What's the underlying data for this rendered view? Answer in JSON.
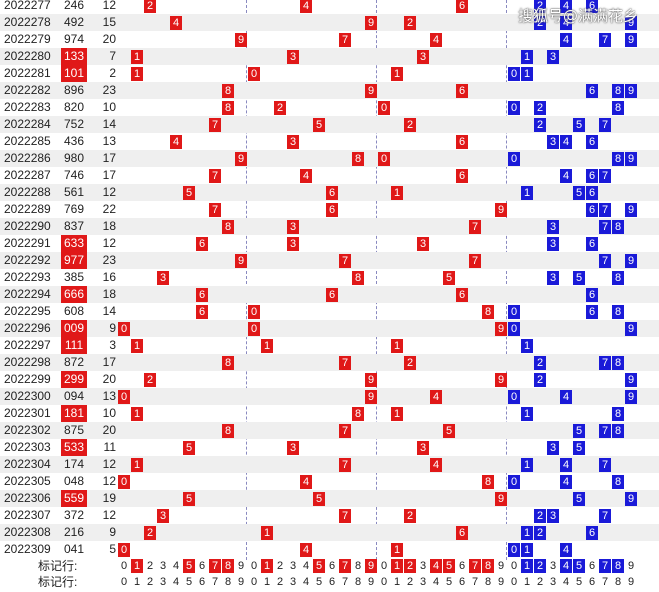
{
  "watermark": "搜狐号@满满花乡",
  "footer_label": "标记行:",
  "chart_data": {
    "type": "table",
    "columns": [
      "issue",
      "number",
      "span",
      "hundreds",
      "tens",
      "units",
      "digits"
    ],
    "rows": [
      {
        "issue": "2022277",
        "number": "246",
        "span": "12",
        "digits": [
          2,
          4,
          6
        ]
      },
      {
        "issue": "2022278",
        "number": "492",
        "span": "15",
        "digits": [
          2,
          4,
          9
        ]
      },
      {
        "issue": "2022279",
        "number": "974",
        "span": "20",
        "digits": [
          4,
          7,
          9
        ]
      },
      {
        "issue": "2022280",
        "number": "133",
        "span": "7",
        "digits": [
          1,
          3
        ]
      },
      {
        "issue": "2022281",
        "number": "101",
        "span": "2",
        "digits": [
          0,
          1
        ]
      },
      {
        "issue": "2022282",
        "number": "896",
        "span": "23",
        "digits": [
          6,
          8,
          9
        ]
      },
      {
        "issue": "2022283",
        "number": "820",
        "span": "10",
        "digits": [
          0,
          2,
          8
        ]
      },
      {
        "issue": "2022284",
        "number": "752",
        "span": "14",
        "digits": [
          2,
          5,
          7
        ]
      },
      {
        "issue": "2022285",
        "number": "436",
        "span": "13",
        "digits": [
          3,
          4,
          6
        ]
      },
      {
        "issue": "2022286",
        "number": "980",
        "span": "17",
        "digits": [
          0,
          8,
          9
        ]
      },
      {
        "issue": "2022287",
        "number": "746",
        "span": "17",
        "digits": [
          4,
          6,
          7
        ]
      },
      {
        "issue": "2022288",
        "number": "561",
        "span": "12",
        "digits": [
          1,
          5,
          6
        ]
      },
      {
        "issue": "2022289",
        "number": "769",
        "span": "22",
        "digits": [
          6,
          7,
          9
        ]
      },
      {
        "issue": "2022290",
        "number": "837",
        "span": "18",
        "digits": [
          3,
          7,
          8
        ]
      },
      {
        "issue": "2022291",
        "number": "633",
        "span": "12",
        "digits": [
          3,
          6
        ]
      },
      {
        "issue": "2022292",
        "number": "977",
        "span": "23",
        "digits": [
          7,
          9
        ]
      },
      {
        "issue": "2022293",
        "number": "385",
        "span": "16",
        "digits": [
          3,
          5,
          8
        ]
      },
      {
        "issue": "2022294",
        "number": "666",
        "span": "18",
        "digits": [
          6
        ]
      },
      {
        "issue": "2022295",
        "number": "608",
        "span": "14",
        "digits": [
          0,
          6,
          8
        ]
      },
      {
        "issue": "2022296",
        "number": "009",
        "span": "9",
        "digits": [
          0,
          9
        ]
      },
      {
        "issue": "2022297",
        "number": "111",
        "span": "3",
        "digits": [
          1
        ]
      },
      {
        "issue": "2022298",
        "number": "872",
        "span": "17",
        "digits": [
          2,
          7,
          8
        ]
      },
      {
        "issue": "2022299",
        "number": "299",
        "span": "20",
        "digits": [
          2,
          9
        ]
      },
      {
        "issue": "2022300",
        "number": "094",
        "span": "13",
        "digits": [
          0,
          4,
          9
        ]
      },
      {
        "issue": "2022301",
        "number": "181",
        "span": "10",
        "digits": [
          1,
          8
        ]
      },
      {
        "issue": "2022302",
        "number": "875",
        "span": "20",
        "digits": [
          5,
          7,
          8
        ]
      },
      {
        "issue": "2022303",
        "number": "533",
        "span": "11",
        "digits": [
          3,
          5
        ]
      },
      {
        "issue": "2022304",
        "number": "174",
        "span": "12",
        "digits": [
          1,
          4,
          7
        ]
      },
      {
        "issue": "2022305",
        "number": "048",
        "span": "12",
        "digits": [
          0,
          4,
          8
        ]
      },
      {
        "issue": "2022306",
        "number": "559",
        "span": "19",
        "digits": [
          5,
          9
        ]
      },
      {
        "issue": "2022307",
        "number": "372",
        "span": "12",
        "digits": [
          2,
          3,
          7
        ]
      },
      {
        "issue": "2022308",
        "number": "216",
        "span": "9",
        "digits": [
          1,
          2,
          6
        ]
      },
      {
        "issue": "2022309",
        "number": "041",
        "span": "5",
        "digits": [
          0,
          1,
          4
        ]
      }
    ],
    "highlighted_numbers": [
      "133",
      "101",
      "633",
      "977",
      "666",
      "009",
      "111",
      "299",
      "181",
      "533",
      "559"
    ],
    "footer_rows": [
      {
        "label": "标记行:",
        "hundreds_marked": [
          1,
          5,
          7,
          8
        ],
        "tens_marked": [
          1,
          5,
          7,
          9
        ],
        "units_marked": [
          1,
          2,
          4,
          5,
          7,
          8
        ]
      },
      {
        "label": "标记行:",
        "hundreds_marked": [],
        "tens_marked": [],
        "units_marked": []
      }
    ],
    "digit_labels": [
      "0",
      "1",
      "2",
      "3",
      "4",
      "5",
      "6",
      "7",
      "8",
      "9"
    ]
  }
}
